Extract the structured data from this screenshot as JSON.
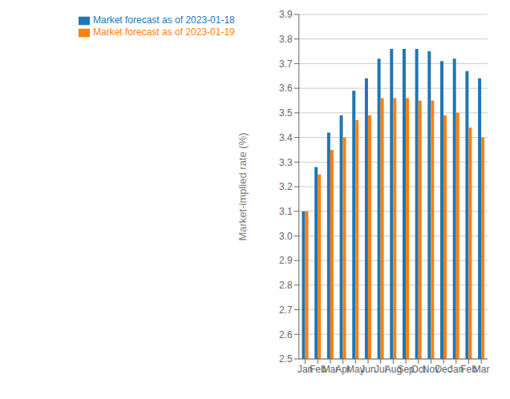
{
  "chart_data": {
    "type": "bar",
    "categories": [
      "Jan",
      "Feb",
      "Mar",
      "Apr",
      "May",
      "Jun",
      "Jul",
      "Aug",
      "Sep",
      "Oct",
      "Nov",
      "Dec",
      "Jan",
      "Feb",
      "Mar"
    ],
    "series": [
      {
        "name": "Market forecast as of 2023-01-18",
        "color": "#1f77b4",
        "values": [
          3.1,
          3.28,
          3.42,
          3.49,
          3.59,
          3.64,
          3.72,
          3.76,
          3.76,
          3.76,
          3.75,
          3.71,
          3.72,
          3.67,
          3.64
        ]
      },
      {
        "name": "Market forecast as of 2023-01-19",
        "color": "#ff7f0e",
        "values": [
          3.1,
          3.25,
          3.35,
          3.4,
          3.47,
          3.49,
          3.56,
          3.56,
          3.56,
          3.55,
          3.55,
          3.49,
          3.5,
          3.44,
          3.4
        ]
      }
    ],
    "y_label": "Market-implied rate (%)",
    "ylim": [
      2.5,
      3.9
    ],
    "yticks": [
      2.5,
      2.6,
      2.7,
      2.8,
      2.9,
      {
        "value": 3.0,
        "label": "3.0"
      },
      3.1,
      3.2,
      3.3,
      3.4,
      3.5,
      3.6,
      3.7,
      3.8,
      3.9
    ],
    "grid": true,
    "legend": "upper left"
  }
}
